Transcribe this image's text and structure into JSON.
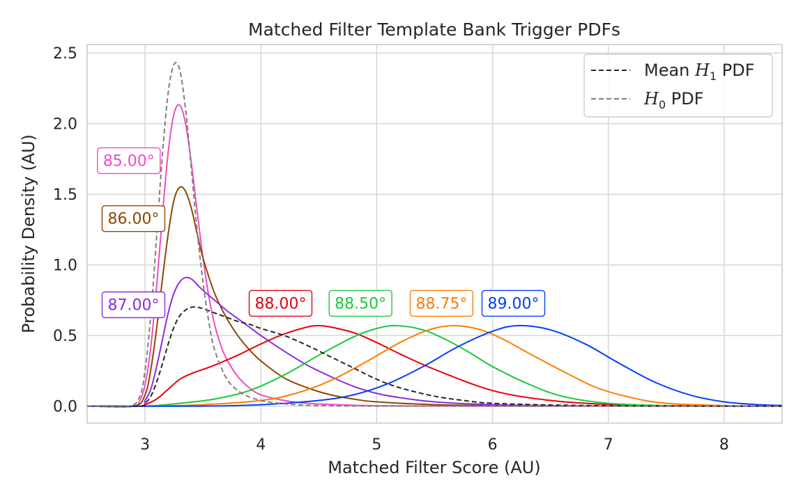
{
  "chart_data": {
    "type": "line",
    "title": "Matched Filter Template Bank Trigger PDFs",
    "xlabel": "Matched Filter Score (AU)",
    "ylabel": "Probability Density (AU)",
    "xlim": [
      2.5,
      8.5
    ],
    "ylim": [
      -0.12,
      2.56
    ],
    "xticks": [
      3,
      4,
      5,
      6,
      7,
      8
    ],
    "yticks": [
      0.0,
      0.5,
      1.0,
      1.5,
      2.0,
      2.5
    ],
    "xtick_labels": [
      "3",
      "4",
      "5",
      "6",
      "7",
      "8"
    ],
    "ytick_labels": [
      "0.0",
      "0.5",
      "1.0",
      "1.5",
      "2.0",
      "2.5"
    ],
    "grid": true,
    "legend_position": "top-right",
    "legend": [
      {
        "label_text": "Mean ",
        "label_symbol": "H",
        "label_sub": "1",
        "label_after": " PDF",
        "color": "#262626",
        "dash": "dashed"
      },
      {
        "label_text": "",
        "label_symbol": "H",
        "label_sub": "0",
        "label_after": " PDF",
        "color": "#7f7f7f",
        "dash": "dashed"
      }
    ],
    "series": [
      {
        "label": "85.00°",
        "color": "#f14cc1",
        "label_x": 2.86,
        "label_y": 1.74,
        "x": [
          2.5,
          2.9,
          2.95,
          3.0,
          3.05,
          3.1,
          3.15,
          3.2,
          3.25,
          3.3,
          3.35,
          3.4,
          3.45,
          3.5,
          3.55,
          3.6,
          3.65,
          3.7,
          3.8,
          3.9,
          4.0,
          4.2,
          4.4,
          4.6,
          4.8,
          5.0,
          5.5,
          6.0,
          8.5
        ],
        "y": [
          0.0,
          0.0,
          0.03,
          0.15,
          0.42,
          0.85,
          1.35,
          1.8,
          2.07,
          2.13,
          2.0,
          1.72,
          1.38,
          1.05,
          0.78,
          0.58,
          0.44,
          0.34,
          0.21,
          0.13,
          0.08,
          0.04,
          0.02,
          0.012,
          0.006,
          0.003,
          0.001,
          0.0,
          0.0
        ]
      },
      {
        "label": "86.00°",
        "color": "#8c4800",
        "label_x": 2.9,
        "label_y": 1.33,
        "x": [
          2.5,
          2.9,
          3.0,
          3.05,
          3.1,
          3.15,
          3.2,
          3.25,
          3.3,
          3.35,
          3.4,
          3.45,
          3.5,
          3.6,
          3.7,
          3.8,
          3.9,
          4.0,
          4.2,
          4.4,
          4.6,
          4.8,
          5.0,
          5.5,
          6.0,
          6.5,
          8.5
        ],
        "y": [
          0.0,
          0.0,
          0.08,
          0.26,
          0.55,
          0.9,
          1.22,
          1.46,
          1.55,
          1.52,
          1.4,
          1.22,
          1.05,
          0.8,
          0.63,
          0.5,
          0.4,
          0.32,
          0.2,
          0.13,
          0.08,
          0.05,
          0.03,
          0.01,
          0.004,
          0.001,
          0.0
        ]
      },
      {
        "label": "87.00°",
        "color": "#8b2be2",
        "label_x": 2.9,
        "label_y": 0.72,
        "x": [
          2.5,
          2.95,
          3.0,
          3.05,
          3.1,
          3.15,
          3.2,
          3.25,
          3.3,
          3.35,
          3.4,
          3.45,
          3.5,
          3.6,
          3.7,
          3.8,
          3.9,
          4.0,
          4.2,
          4.4,
          4.6,
          4.8,
          5.0,
          5.2,
          5.5,
          6.0,
          6.5,
          7.0,
          8.5
        ],
        "y": [
          0.0,
          0.0,
          0.04,
          0.12,
          0.28,
          0.47,
          0.66,
          0.8,
          0.88,
          0.91,
          0.9,
          0.86,
          0.82,
          0.75,
          0.68,
          0.62,
          0.56,
          0.5,
          0.39,
          0.29,
          0.21,
          0.14,
          0.09,
          0.06,
          0.03,
          0.01,
          0.003,
          0.001,
          0.0
        ]
      },
      {
        "label": "88.00°",
        "color": "#e8000b",
        "label_x": 4.17,
        "label_y": 0.73,
        "x": [
          2.5,
          2.95,
          3.0,
          3.1,
          3.2,
          3.3,
          3.4,
          3.5,
          3.6,
          3.8,
          4.0,
          4.2,
          4.4,
          4.5,
          4.6,
          4.8,
          5.0,
          5.2,
          5.5,
          6.0,
          6.5,
          7.0,
          7.5,
          8.5
        ],
        "y": [
          0.0,
          0.0,
          0.01,
          0.05,
          0.12,
          0.19,
          0.23,
          0.26,
          0.29,
          0.36,
          0.44,
          0.51,
          0.56,
          0.57,
          0.56,
          0.52,
          0.45,
          0.37,
          0.26,
          0.11,
          0.04,
          0.012,
          0.003,
          0.0
        ]
      },
      {
        "label": "88.50°",
        "color": "#1ac938",
        "label_x": 4.86,
        "label_y": 0.73,
        "x": [
          2.5,
          3.0,
          3.3,
          3.6,
          3.9,
          4.2,
          4.5,
          4.8,
          5.0,
          5.17,
          5.4,
          5.6,
          5.8,
          6.0,
          6.3,
          6.6,
          7.0,
          7.5,
          8.0,
          8.5
        ],
        "y": [
          0.0,
          0.0,
          0.02,
          0.05,
          0.11,
          0.22,
          0.36,
          0.49,
          0.55,
          0.57,
          0.54,
          0.47,
          0.38,
          0.28,
          0.16,
          0.07,
          0.02,
          0.004,
          0.001,
          0.0
        ]
      },
      {
        "label": "88.75°",
        "color": "#ff7c00",
        "label_x": 5.56,
        "label_y": 0.73,
        "x": [
          2.5,
          3.0,
          3.5,
          4.0,
          4.3,
          4.6,
          4.9,
          5.2,
          5.45,
          5.67,
          5.9,
          6.1,
          6.3,
          6.6,
          6.9,
          7.2,
          7.5,
          8.0,
          8.5
        ],
        "y": [
          0.0,
          0.0,
          0.01,
          0.04,
          0.09,
          0.18,
          0.31,
          0.45,
          0.54,
          0.57,
          0.54,
          0.47,
          0.38,
          0.25,
          0.13,
          0.06,
          0.02,
          0.004,
          0.0
        ]
      },
      {
        "label": "89.00°",
        "color": "#023eff",
        "label_x": 6.18,
        "label_y": 0.73,
        "x": [
          2.5,
          3.5,
          4.0,
          4.5,
          4.8,
          5.1,
          5.4,
          5.7,
          6.0,
          6.22,
          6.5,
          6.8,
          7.1,
          7.4,
          7.7,
          8.0,
          8.3,
          8.5
        ],
        "y": [
          0.0,
          0.0,
          0.01,
          0.04,
          0.08,
          0.16,
          0.28,
          0.42,
          0.53,
          0.57,
          0.54,
          0.44,
          0.3,
          0.17,
          0.08,
          0.03,
          0.01,
          0.005
        ]
      },
      {
        "label": "Mean H1 PDF",
        "color": "#262626",
        "dash": true,
        "x": [
          2.5,
          2.95,
          3.0,
          3.05,
          3.1,
          3.15,
          3.2,
          3.25,
          3.3,
          3.35,
          3.4,
          3.45,
          3.5,
          3.6,
          3.7,
          3.8,
          3.9,
          4.0,
          4.2,
          4.4,
          4.6,
          4.8,
          5.0,
          5.2,
          5.5,
          5.8,
          6.0,
          6.5,
          7.0,
          7.5,
          8.0,
          8.5
        ],
        "y": [
          0.0,
          0.0,
          0.02,
          0.07,
          0.17,
          0.3,
          0.44,
          0.56,
          0.64,
          0.68,
          0.7,
          0.7,
          0.69,
          0.66,
          0.63,
          0.6,
          0.58,
          0.55,
          0.5,
          0.43,
          0.35,
          0.27,
          0.19,
          0.13,
          0.07,
          0.035,
          0.02,
          0.008,
          0.003,
          0.001,
          0.0,
          0.0
        ]
      },
      {
        "label": "H0 PDF",
        "color": "#7f7f7f",
        "dash": true,
        "x": [
          2.5,
          2.85,
          2.95,
          3.0,
          3.05,
          3.1,
          3.15,
          3.2,
          3.25,
          3.3,
          3.35,
          3.4,
          3.45,
          3.5,
          3.55,
          3.6,
          3.7,
          3.8,
          3.9,
          4.0,
          4.1,
          4.3,
          4.5,
          4.8,
          5.5,
          8.5
        ],
        "y": [
          0.0,
          0.0,
          0.06,
          0.25,
          0.65,
          1.2,
          1.78,
          2.22,
          2.42,
          2.38,
          2.1,
          1.68,
          1.24,
          0.88,
          0.6,
          0.4,
          0.2,
          0.11,
          0.065,
          0.04,
          0.025,
          0.01,
          0.004,
          0.001,
          0.0,
          0.0
        ]
      }
    ]
  }
}
